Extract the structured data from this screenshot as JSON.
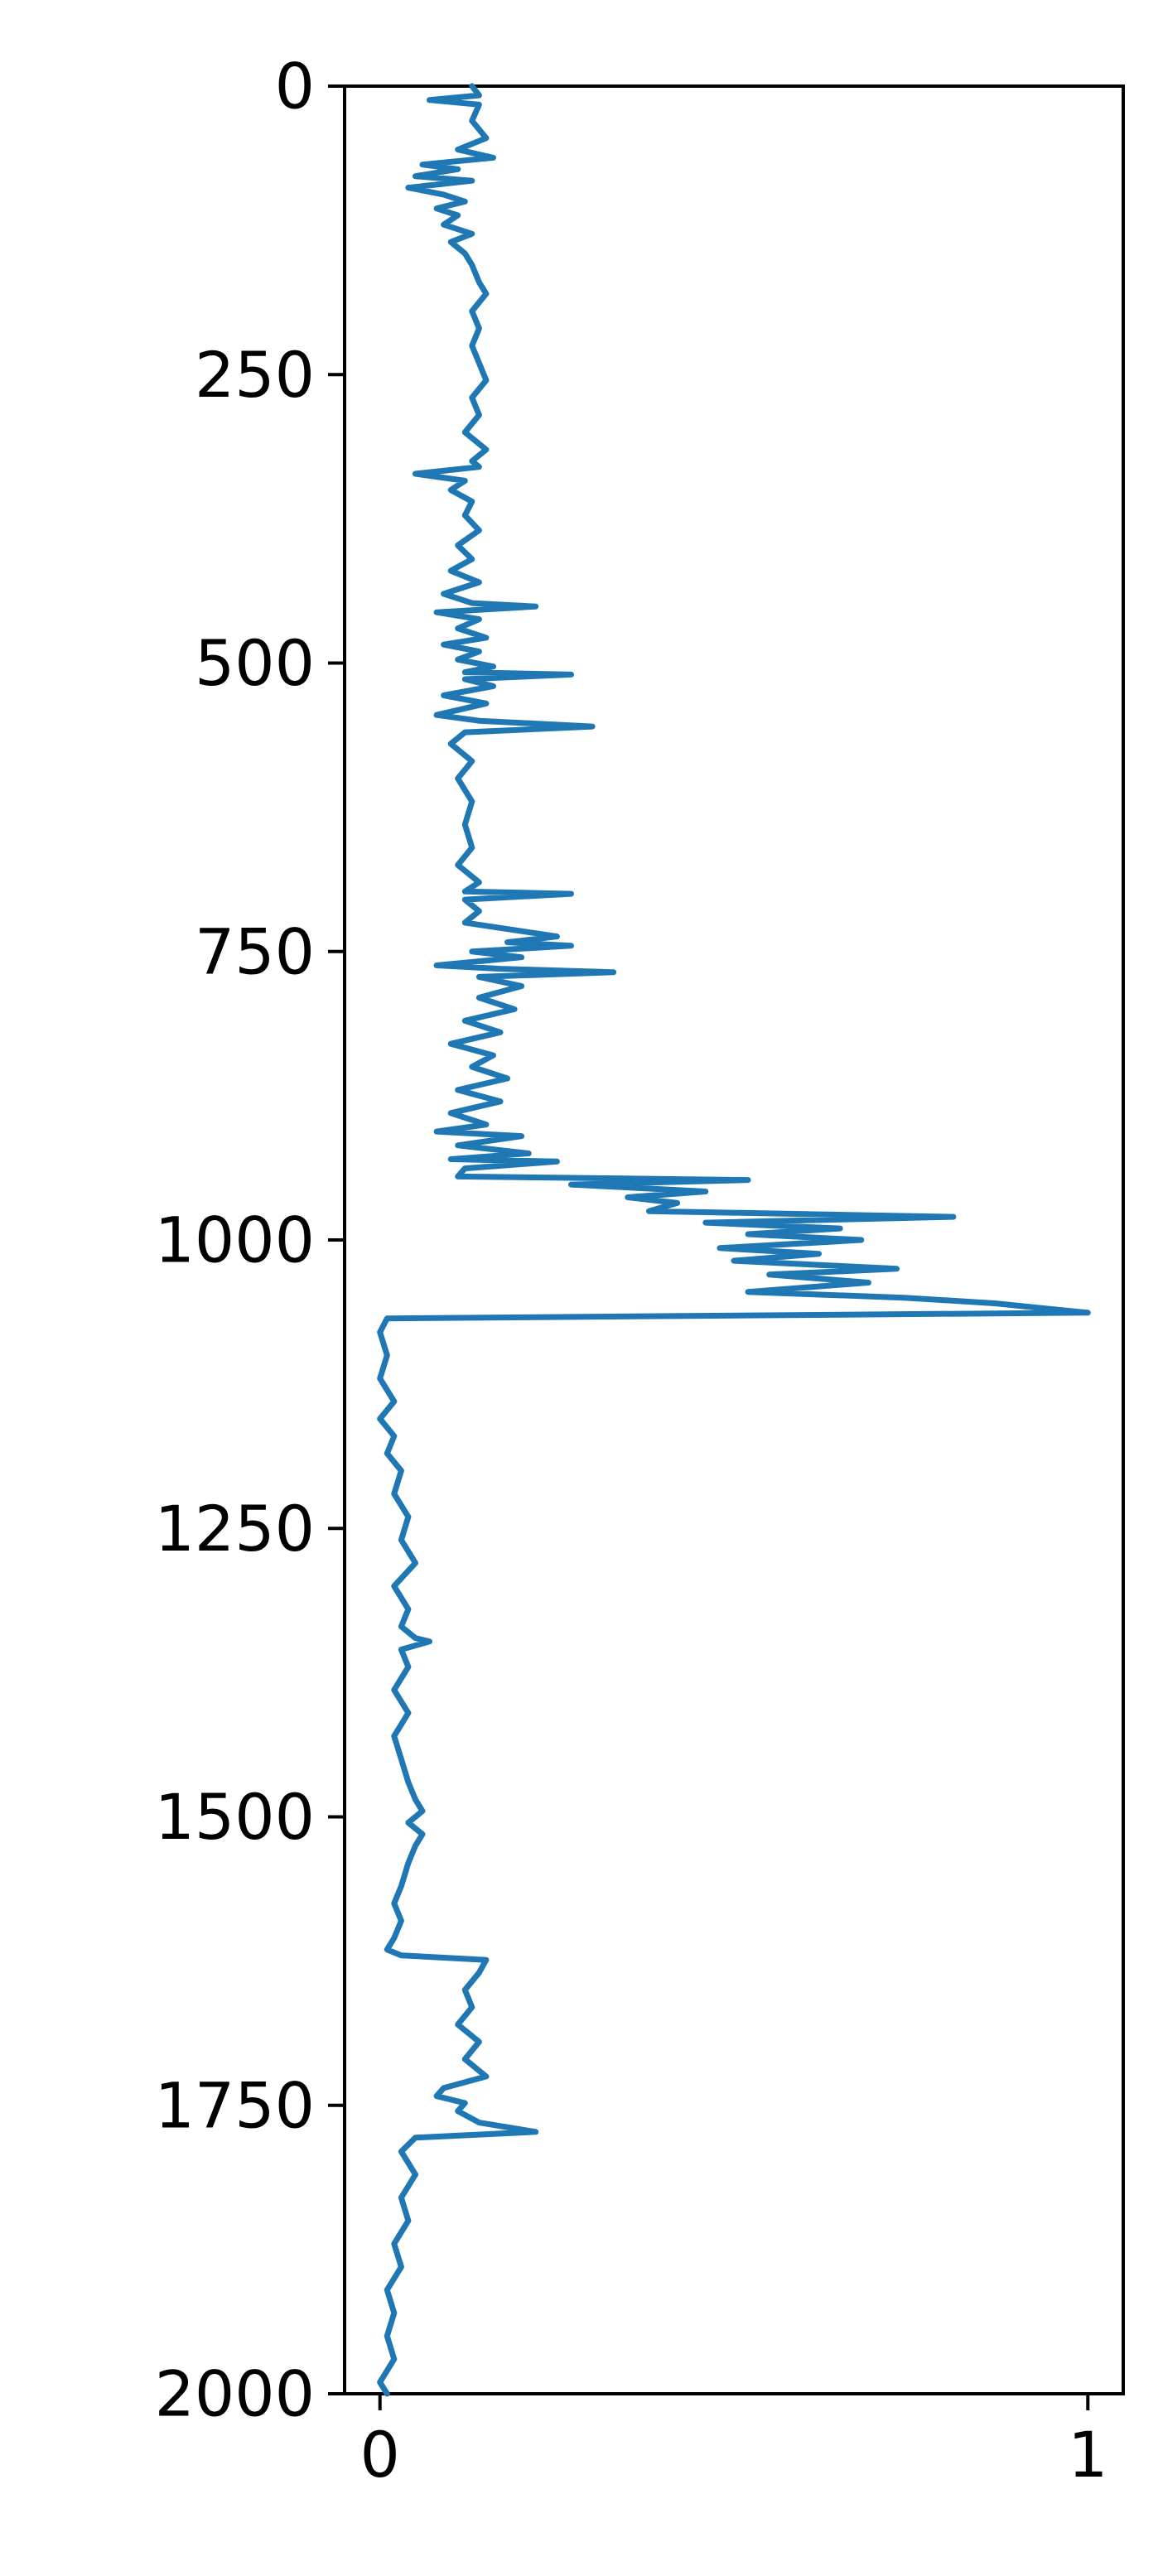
{
  "chart_data": {
    "type": "line",
    "title": "",
    "xlabel": "",
    "ylabel": "",
    "xlim": [
      -0.05,
      1.05
    ],
    "ylim": [
      2000,
      0
    ],
    "y_inverted": true,
    "grid": false,
    "legend": "none",
    "x_ticks": [
      {
        "value": 0,
        "label": "0"
      },
      {
        "value": 1,
        "label": "1"
      }
    ],
    "y_ticks": [
      {
        "value": 0,
        "label": "0"
      },
      {
        "value": 250,
        "label": "250"
      },
      {
        "value": 500,
        "label": "500"
      },
      {
        "value": 750,
        "label": "750"
      },
      {
        "value": 1000,
        "label": "1000"
      },
      {
        "value": 1250,
        "label": "1250"
      },
      {
        "value": 1500,
        "label": "1500"
      },
      {
        "value": 1750,
        "label": "1750"
      },
      {
        "value": 2000,
        "label": "2000"
      }
    ],
    "series": [
      {
        "color": "#1f77b4",
        "points": [
          [
            0.13,
            0
          ],
          [
            0.14,
            8
          ],
          [
            0.07,
            12
          ],
          [
            0.14,
            16
          ],
          [
            0.13,
            30
          ],
          [
            0.15,
            45
          ],
          [
            0.11,
            55
          ],
          [
            0.16,
            62
          ],
          [
            0.06,
            68
          ],
          [
            0.11,
            72
          ],
          [
            0.05,
            78
          ],
          [
            0.13,
            82
          ],
          [
            0.04,
            88
          ],
          [
            0.09,
            94
          ],
          [
            0.12,
            100
          ],
          [
            0.08,
            106
          ],
          [
            0.11,
            112
          ],
          [
            0.09,
            120
          ],
          [
            0.13,
            128
          ],
          [
            0.1,
            135
          ],
          [
            0.12,
            145
          ],
          [
            0.13,
            155
          ],
          [
            0.14,
            170
          ],
          [
            0.15,
            180
          ],
          [
            0.13,
            195
          ],
          [
            0.14,
            210
          ],
          [
            0.13,
            225
          ],
          [
            0.14,
            240
          ],
          [
            0.15,
            255
          ],
          [
            0.13,
            270
          ],
          [
            0.14,
            285
          ],
          [
            0.12,
            300
          ],
          [
            0.15,
            315
          ],
          [
            0.13,
            325
          ],
          [
            0.14,
            330
          ],
          [
            0.05,
            336
          ],
          [
            0.12,
            342
          ],
          [
            0.1,
            350
          ],
          [
            0.13,
            360
          ],
          [
            0.12,
            372
          ],
          [
            0.14,
            385
          ],
          [
            0.11,
            398
          ],
          [
            0.13,
            410
          ],
          [
            0.1,
            420
          ],
          [
            0.14,
            430
          ],
          [
            0.09,
            440
          ],
          [
            0.13,
            448
          ],
          [
            0.22,
            451
          ],
          [
            0.08,
            456
          ],
          [
            0.14,
            462
          ],
          [
            0.11,
            470
          ],
          [
            0.15,
            478
          ],
          [
            0.09,
            484
          ],
          [
            0.14,
            490
          ],
          [
            0.11,
            497
          ],
          [
            0.16,
            503
          ],
          [
            0.12,
            508
          ],
          [
            0.27,
            510
          ],
          [
            0.12,
            514
          ],
          [
            0.16,
            520
          ],
          [
            0.09,
            528
          ],
          [
            0.15,
            535
          ],
          [
            0.08,
            545
          ],
          [
            0.14,
            550
          ],
          [
            0.3,
            555
          ],
          [
            0.12,
            560
          ],
          [
            0.1,
            570
          ],
          [
            0.13,
            585
          ],
          [
            0.11,
            600
          ],
          [
            0.13,
            620
          ],
          [
            0.12,
            640
          ],
          [
            0.13,
            660
          ],
          [
            0.11,
            675
          ],
          [
            0.14,
            690
          ],
          [
            0.12,
            698
          ],
          [
            0.27,
            700
          ],
          [
            0.12,
            705
          ],
          [
            0.14,
            715
          ],
          [
            0.12,
            725
          ],
          [
            0.25,
            737
          ],
          [
            0.18,
            742
          ],
          [
            0.27,
            745
          ],
          [
            0.13,
            750
          ],
          [
            0.2,
            755
          ],
          [
            0.08,
            762
          ],
          [
            0.17,
            765
          ],
          [
            0.33,
            768
          ],
          [
            0.14,
            772
          ],
          [
            0.2,
            780
          ],
          [
            0.14,
            790
          ],
          [
            0.19,
            800
          ],
          [
            0.12,
            810
          ],
          [
            0.17,
            820
          ],
          [
            0.1,
            830
          ],
          [
            0.16,
            840
          ],
          [
            0.13,
            850
          ],
          [
            0.18,
            860
          ],
          [
            0.11,
            870
          ],
          [
            0.17,
            880
          ],
          [
            0.1,
            890
          ],
          [
            0.15,
            900
          ],
          [
            0.08,
            906
          ],
          [
            0.2,
            910
          ],
          [
            0.11,
            918
          ],
          [
            0.21,
            925
          ],
          [
            0.1,
            930
          ],
          [
            0.25,
            932
          ],
          [
            0.12,
            938
          ],
          [
            0.11,
            945
          ],
          [
            0.52,
            948
          ],
          [
            0.27,
            952
          ],
          [
            0.46,
            958
          ],
          [
            0.35,
            963
          ],
          [
            0.42,
            968
          ],
          [
            0.38,
            975
          ],
          [
            0.81,
            980
          ],
          [
            0.46,
            985
          ],
          [
            0.65,
            990
          ],
          [
            0.52,
            995
          ],
          [
            0.68,
            1000
          ],
          [
            0.48,
            1007
          ],
          [
            0.62,
            1012
          ],
          [
            0.5,
            1018
          ],
          [
            0.73,
            1025
          ],
          [
            0.55,
            1030
          ],
          [
            0.69,
            1037
          ],
          [
            0.52,
            1045
          ],
          [
            0.74,
            1050
          ],
          [
            0.87,
            1055
          ],
          [
            0.95,
            1060
          ],
          [
            1.0,
            1063
          ],
          [
            0.01,
            1068
          ],
          [
            0.0,
            1080
          ],
          [
            0.01,
            1100
          ],
          [
            0.0,
            1120
          ],
          [
            0.02,
            1140
          ],
          [
            0.0,
            1155
          ],
          [
            0.02,
            1170
          ],
          [
            0.01,
            1185
          ],
          [
            0.03,
            1200
          ],
          [
            0.02,
            1220
          ],
          [
            0.04,
            1240
          ],
          [
            0.03,
            1260
          ],
          [
            0.05,
            1280
          ],
          [
            0.02,
            1300
          ],
          [
            0.04,
            1320
          ],
          [
            0.03,
            1335
          ],
          [
            0.05,
            1345
          ],
          [
            0.07,
            1348
          ],
          [
            0.03,
            1355
          ],
          [
            0.04,
            1370
          ],
          [
            0.02,
            1390
          ],
          [
            0.04,
            1410
          ],
          [
            0.02,
            1430
          ],
          [
            0.03,
            1450
          ],
          [
            0.04,
            1470
          ],
          [
            0.05,
            1485
          ],
          [
            0.06,
            1495
          ],
          [
            0.04,
            1505
          ],
          [
            0.06,
            1515
          ],
          [
            0.05,
            1525
          ],
          [
            0.04,
            1540
          ],
          [
            0.03,
            1560
          ],
          [
            0.02,
            1575
          ],
          [
            0.03,
            1590
          ],
          [
            0.02,
            1605
          ],
          [
            0.01,
            1615
          ],
          [
            0.03,
            1620
          ],
          [
            0.15,
            1624
          ],
          [
            0.14,
            1635
          ],
          [
            0.12,
            1650
          ],
          [
            0.13,
            1665
          ],
          [
            0.11,
            1680
          ],
          [
            0.14,
            1695
          ],
          [
            0.12,
            1710
          ],
          [
            0.15,
            1725
          ],
          [
            0.09,
            1735
          ],
          [
            0.08,
            1742
          ],
          [
            0.12,
            1748
          ],
          [
            0.11,
            1755
          ],
          [
            0.14,
            1765
          ],
          [
            0.22,
            1773
          ],
          [
            0.05,
            1778
          ],
          [
            0.03,
            1790
          ],
          [
            0.05,
            1810
          ],
          [
            0.03,
            1830
          ],
          [
            0.04,
            1850
          ],
          [
            0.02,
            1870
          ],
          [
            0.03,
            1890
          ],
          [
            0.01,
            1910
          ],
          [
            0.02,
            1930
          ],
          [
            0.01,
            1950
          ],
          [
            0.02,
            1970
          ],
          [
            0.0,
            1990
          ],
          [
            0.01,
            2000
          ]
        ]
      }
    ]
  }
}
